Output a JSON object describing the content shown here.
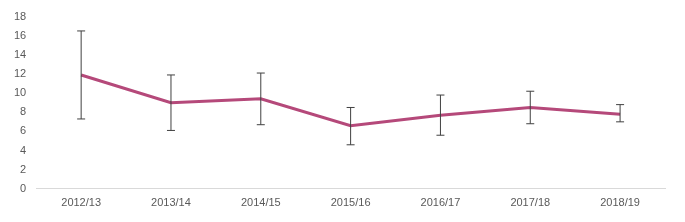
{
  "chart_data": {
    "type": "line",
    "categories": [
      "2012/13",
      "2013/14",
      "2014/15",
      "2015/16",
      "2016/17",
      "2017/18",
      "2018/19"
    ],
    "values": [
      11.9,
      9.0,
      9.4,
      6.6,
      7.7,
      8.5,
      7.8
    ],
    "error_low": [
      7.3,
      6.1,
      6.7,
      4.6,
      5.6,
      6.8,
      7.0
    ],
    "error_high": [
      16.5,
      11.9,
      12.1,
      8.5,
      9.8,
      10.2,
      8.8
    ],
    "color": "#b5497a",
    "ylim": [
      0,
      18
    ],
    "yticks": [
      0,
      2,
      4,
      6,
      8,
      10,
      12,
      14,
      16,
      18
    ],
    "grid": false
  }
}
